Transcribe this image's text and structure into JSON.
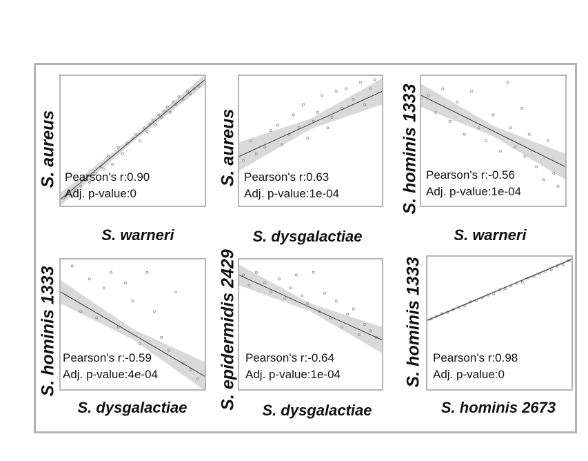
{
  "chart_data": [
    {
      "type": "scatter",
      "ylabel": "S. aureus",
      "xlabel": "S. warneri",
      "annotations": {
        "pearson": "Pearson's r:0.90",
        "pvalue": "Adj. p-value:0"
      },
      "fit": {
        "start": [
          0.0,
          0.05
        ],
        "end": [
          1.0,
          0.97
        ],
        "band_start": 0.05,
        "band_mid": 0.02,
        "band_end": 0.04
      },
      "x": [
        0.02,
        0.05,
        0.08,
        0.1,
        0.14,
        0.17,
        0.2,
        0.24,
        0.28,
        0.3,
        0.33,
        0.36,
        0.4,
        0.43,
        0.46,
        0.5,
        0.52,
        0.55,
        0.58,
        0.6,
        0.62,
        0.64,
        0.66,
        0.68,
        0.7,
        0.72,
        0.74,
        0.76,
        0.78,
        0.8,
        0.82,
        0.85,
        0.88,
        0.9,
        0.93,
        0.96
      ],
      "y": [
        0.06,
        0.1,
        0.07,
        0.12,
        0.15,
        0.2,
        0.18,
        0.25,
        0.3,
        0.28,
        0.38,
        0.32,
        0.45,
        0.4,
        0.48,
        0.52,
        0.55,
        0.5,
        0.6,
        0.57,
        0.63,
        0.66,
        0.62,
        0.7,
        0.68,
        0.73,
        0.76,
        0.72,
        0.8,
        0.78,
        0.84,
        0.82,
        0.88,
        0.86,
        0.9,
        0.92
      ]
    },
    {
      "type": "scatter",
      "ylabel": "S. aureus",
      "xlabel": "S. dysgalactiae",
      "annotations": {
        "pearson": "Pearson's r:0.63",
        "pvalue": "Adj. p-value:1e-04"
      },
      "fit": {
        "start": [
          0.0,
          0.38
        ],
        "end": [
          1.0,
          0.88
        ],
        "band_start": 0.11,
        "band_mid": 0.04,
        "band_end": 0.1
      },
      "x": [
        0.03,
        0.08,
        0.12,
        0.18,
        0.22,
        0.27,
        0.3,
        0.35,
        0.38,
        0.42,
        0.45,
        0.48,
        0.52,
        0.55,
        0.58,
        0.62,
        0.65,
        0.68,
        0.72,
        0.75,
        0.8,
        0.85,
        0.88,
        0.92,
        0.95
      ],
      "y": [
        0.35,
        0.5,
        0.4,
        0.45,
        0.58,
        0.62,
        0.47,
        0.55,
        0.7,
        0.6,
        0.78,
        0.52,
        0.65,
        0.72,
        0.85,
        0.6,
        0.68,
        0.88,
        0.75,
        0.9,
        0.82,
        0.95,
        0.78,
        0.9,
        0.97
      ]
    },
    {
      "type": "scatter",
      "ylabel": "S. hominis 1333",
      "xlabel": "S. warneri",
      "annotations": {
        "pearson": "Pearson's r:-0.56",
        "pvalue": "Adj. p-value:1e-04"
      },
      "fit": {
        "start": [
          0.0,
          0.85
        ],
        "end": [
          1.0,
          0.3
        ],
        "band_start": 0.09,
        "band_mid": 0.04,
        "band_end": 0.1
      },
      "x": [
        0.05,
        0.1,
        0.15,
        0.2,
        0.25,
        0.3,
        0.35,
        0.4,
        0.45,
        0.5,
        0.55,
        0.6,
        0.62,
        0.65,
        0.7,
        0.72,
        0.75,
        0.8,
        0.85,
        0.88,
        0.92,
        0.95
      ],
      "y": [
        0.85,
        0.72,
        0.9,
        0.65,
        0.8,
        0.55,
        0.88,
        0.6,
        0.5,
        0.7,
        0.42,
        0.95,
        0.6,
        0.45,
        0.75,
        0.38,
        0.55,
        0.3,
        0.2,
        0.5,
        0.25,
        0.15
      ]
    },
    {
      "type": "scatter",
      "ylabel": "S. hominis 1333",
      "xlabel": "S. dysgalactiae",
      "annotations": {
        "pearson": "Pearson's r:-0.59",
        "pvalue": "Adj. p-value:4e-04"
      },
      "fit": {
        "start": [
          0.0,
          0.75
        ],
        "end": [
          1.0,
          0.1
        ],
        "band_start": 0.09,
        "band_mid": 0.04,
        "band_end": 0.11
      },
      "x": [
        0.04,
        0.08,
        0.14,
        0.2,
        0.25,
        0.3,
        0.35,
        0.4,
        0.45,
        0.5,
        0.55,
        0.6,
        0.65,
        0.7,
        0.75,
        0.8,
        0.85,
        0.9,
        0.95
      ],
      "y": [
        0.72,
        0.95,
        0.6,
        0.85,
        0.55,
        0.78,
        0.9,
        0.48,
        0.82,
        0.68,
        0.35,
        0.9,
        0.6,
        0.4,
        0.3,
        0.75,
        0.2,
        0.15,
        0.08
      ]
    },
    {
      "type": "scatter",
      "ylabel": "S. epidermidis 2429",
      "xlabel": "S. dysgalactiae",
      "annotations": {
        "pearson": "Pearson's r:-0.64",
        "pvalue": "Adj. p-value:1e-04"
      },
      "fit": {
        "start": [
          0.0,
          0.88
        ],
        "end": [
          1.0,
          0.38
        ],
        "band_start": 0.08,
        "band_mid": 0.03,
        "band_end": 0.1
      },
      "x": [
        0.03,
        0.07,
        0.12,
        0.18,
        0.22,
        0.28,
        0.32,
        0.36,
        0.4,
        0.44,
        0.48,
        0.52,
        0.56,
        0.6,
        0.64,
        0.68,
        0.72,
        0.76,
        0.8,
        0.84,
        0.88,
        0.92,
        0.96
      ],
      "y": [
        0.88,
        0.8,
        0.9,
        0.82,
        0.75,
        0.85,
        0.7,
        0.78,
        0.88,
        0.72,
        0.66,
        0.9,
        0.6,
        0.74,
        0.55,
        0.68,
        0.48,
        0.58,
        0.62,
        0.42,
        0.5,
        0.45,
        0.4
      ]
    },
    {
      "type": "scatter",
      "ylabel": "S. hominis 1333",
      "xlabel": "S. hominis 2673",
      "annotations": {
        "pearson": "Pearson's r:0.98",
        "pvalue": "Adj. p-value:0"
      },
      "fit": {
        "start": [
          0.0,
          0.52
        ],
        "end": [
          1.0,
          0.98
        ],
        "band_start": 0.01,
        "band_mid": 0.005,
        "band_end": 0.01
      },
      "x": [
        0.02,
        0.06,
        0.1,
        0.14,
        0.18,
        0.22,
        0.26,
        0.3,
        0.34,
        0.38,
        0.42,
        0.46,
        0.5,
        0.54,
        0.58,
        0.62,
        0.66,
        0.7,
        0.74,
        0.78,
        0.82,
        0.86,
        0.9,
        0.94,
        0.98
      ],
      "y": [
        0.53,
        0.55,
        0.57,
        0.58,
        0.6,
        0.62,
        0.63,
        0.66,
        0.67,
        0.69,
        0.71,
        0.72,
        0.75,
        0.76,
        0.78,
        0.8,
        0.81,
        0.84,
        0.85,
        0.87,
        0.89,
        0.9,
        0.93,
        0.94,
        0.97
      ]
    }
  ],
  "style": {
    "line_color": "#333333",
    "band_color": "#d9d9d9",
    "point_color": "#8c8c8c"
  }
}
